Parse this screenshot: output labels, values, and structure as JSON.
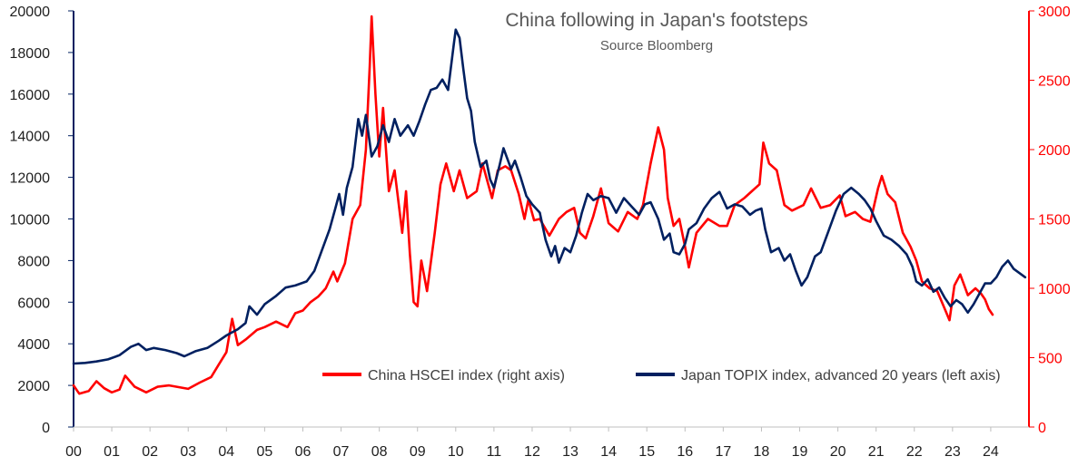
{
  "chart_data": {
    "type": "line",
    "title": "China following in Japan's footsteps",
    "subtitle": "Source Bloomberg",
    "x_axis": {
      "labels": [
        "00",
        "01",
        "02",
        "03",
        "04",
        "05",
        "06",
        "07",
        "08",
        "09",
        "10",
        "11",
        "12",
        "13",
        "14",
        "15",
        "16",
        "17",
        "18",
        "19",
        "20",
        "21",
        "22",
        "23",
        "24"
      ],
      "range": [
        2000,
        2025
      ]
    },
    "y_left": {
      "range": [
        0,
        20000
      ],
      "ticks": [
        0,
        2000,
        4000,
        6000,
        8000,
        10000,
        12000,
        14000,
        16000,
        18000,
        20000
      ],
      "tick_labels": [
        "0",
        "2000",
        "4000",
        "6000",
        "8000",
        "10000",
        "12000",
        "14000",
        "16000",
        "18000",
        "20000"
      ]
    },
    "y_right": {
      "range": [
        0,
        3000
      ],
      "ticks": [
        0,
        500,
        1000,
        1500,
        2000,
        2500,
        3000
      ],
      "tick_labels": [
        "0",
        "500",
        "1000",
        "1500",
        "2000",
        "2500",
        "3000"
      ]
    },
    "legend_position": "bottom-right",
    "series": [
      {
        "name": "China HSCEI index (right axis)",
        "axis": "right",
        "color": "#ff0000",
        "points": [
          [
            2000.0,
            300
          ],
          [
            2000.15,
            240
          ],
          [
            2000.4,
            260
          ],
          [
            2000.6,
            330
          ],
          [
            2000.8,
            280
          ],
          [
            2001.0,
            250
          ],
          [
            2001.2,
            270
          ],
          [
            2001.35,
            370
          ],
          [
            2001.6,
            290
          ],
          [
            2001.9,
            250
          ],
          [
            2002.2,
            290
          ],
          [
            2002.5,
            300
          ],
          [
            2002.8,
            285
          ],
          [
            2003.0,
            275
          ],
          [
            2003.3,
            320
          ],
          [
            2003.6,
            360
          ],
          [
            2003.8,
            450
          ],
          [
            2004.0,
            540
          ],
          [
            2004.15,
            780
          ],
          [
            2004.3,
            590
          ],
          [
            2004.5,
            630
          ],
          [
            2004.8,
            700
          ],
          [
            2005.0,
            720
          ],
          [
            2005.3,
            760
          ],
          [
            2005.6,
            720
          ],
          [
            2005.8,
            820
          ],
          [
            2006.0,
            840
          ],
          [
            2006.2,
            900
          ],
          [
            2006.4,
            940
          ],
          [
            2006.6,
            1000
          ],
          [
            2006.8,
            1120
          ],
          [
            2006.9,
            1050
          ],
          [
            2007.1,
            1180
          ],
          [
            2007.3,
            1500
          ],
          [
            2007.5,
            1600
          ],
          [
            2007.65,
            2000
          ],
          [
            2007.75,
            2600
          ],
          [
            2007.8,
            2960
          ],
          [
            2007.9,
            2400
          ],
          [
            2008.0,
            1950
          ],
          [
            2008.1,
            2300
          ],
          [
            2008.25,
            1700
          ],
          [
            2008.4,
            1850
          ],
          [
            2008.6,
            1400
          ],
          [
            2008.7,
            1700
          ],
          [
            2008.8,
            1250
          ],
          [
            2008.9,
            900
          ],
          [
            2009.0,
            870
          ],
          [
            2009.1,
            1200
          ],
          [
            2009.25,
            980
          ],
          [
            2009.45,
            1400
          ],
          [
            2009.6,
            1750
          ],
          [
            2009.75,
            1900
          ],
          [
            2009.95,
            1700
          ],
          [
            2010.1,
            1850
          ],
          [
            2010.3,
            1650
          ],
          [
            2010.55,
            1700
          ],
          [
            2010.7,
            1900
          ],
          [
            2010.8,
            1800
          ],
          [
            2010.95,
            1650
          ],
          [
            2011.1,
            1850
          ],
          [
            2011.3,
            1880
          ],
          [
            2011.45,
            1850
          ],
          [
            2011.65,
            1680
          ],
          [
            2011.8,
            1500
          ],
          [
            2011.9,
            1640
          ],
          [
            2012.05,
            1490
          ],
          [
            2012.2,
            1500
          ],
          [
            2012.45,
            1380
          ],
          [
            2012.7,
            1500
          ],
          [
            2012.9,
            1550
          ],
          [
            2013.1,
            1580
          ],
          [
            2013.25,
            1400
          ],
          [
            2013.4,
            1360
          ],
          [
            2013.6,
            1520
          ],
          [
            2013.8,
            1720
          ],
          [
            2014.0,
            1470
          ],
          [
            2014.25,
            1410
          ],
          [
            2014.5,
            1550
          ],
          [
            2014.75,
            1500
          ],
          [
            2014.9,
            1600
          ],
          [
            2015.1,
            1900
          ],
          [
            2015.3,
            2160
          ],
          [
            2015.45,
            2000
          ],
          [
            2015.55,
            1650
          ],
          [
            2015.7,
            1450
          ],
          [
            2015.85,
            1500
          ],
          [
            2016.0,
            1300
          ],
          [
            2016.1,
            1150
          ],
          [
            2016.3,
            1400
          ],
          [
            2016.6,
            1500
          ],
          [
            2016.9,
            1450
          ],
          [
            2017.1,
            1450
          ],
          [
            2017.3,
            1600
          ],
          [
            2017.55,
            1650
          ],
          [
            2017.75,
            1700
          ],
          [
            2017.95,
            1750
          ],
          [
            2018.05,
            2050
          ],
          [
            2018.2,
            1900
          ],
          [
            2018.4,
            1850
          ],
          [
            2018.6,
            1600
          ],
          [
            2018.8,
            1560
          ],
          [
            2019.1,
            1600
          ],
          [
            2019.3,
            1720
          ],
          [
            2019.55,
            1580
          ],
          [
            2019.8,
            1600
          ],
          [
            2020.05,
            1670
          ],
          [
            2020.2,
            1520
          ],
          [
            2020.45,
            1550
          ],
          [
            2020.65,
            1500
          ],
          [
            2020.85,
            1480
          ],
          [
            2021.05,
            1720
          ],
          [
            2021.15,
            1810
          ],
          [
            2021.3,
            1680
          ],
          [
            2021.5,
            1620
          ],
          [
            2021.7,
            1400
          ],
          [
            2021.9,
            1300
          ],
          [
            2022.05,
            1200
          ],
          [
            2022.2,
            1050
          ],
          [
            2022.4,
            1000
          ],
          [
            2022.6,
            980
          ],
          [
            2022.8,
            850
          ],
          [
            2022.92,
            770
          ],
          [
            2023.05,
            1020
          ],
          [
            2023.2,
            1100
          ],
          [
            2023.4,
            950
          ],
          [
            2023.6,
            1000
          ],
          [
            2023.75,
            960
          ],
          [
            2023.85,
            920
          ],
          [
            2023.95,
            850
          ],
          [
            2024.05,
            810
          ]
        ]
      },
      {
        "name": "Japan TOPIX index, advanced 20 years (left axis)",
        "axis": "left",
        "color": "#002060",
        "points": [
          [
            2000.0,
            3050
          ],
          [
            2000.3,
            3080
          ],
          [
            2000.6,
            3150
          ],
          [
            2000.9,
            3250
          ],
          [
            2001.2,
            3450
          ],
          [
            2001.5,
            3850
          ],
          [
            2001.7,
            4000
          ],
          [
            2001.9,
            3700
          ],
          [
            2002.1,
            3800
          ],
          [
            2002.4,
            3700
          ],
          [
            2002.7,
            3550
          ],
          [
            2002.9,
            3400
          ],
          [
            2003.2,
            3650
          ],
          [
            2003.5,
            3800
          ],
          [
            2003.8,
            4150
          ],
          [
            2004.0,
            4400
          ],
          [
            2004.3,
            4700
          ],
          [
            2004.5,
            5000
          ],
          [
            2004.6,
            5800
          ],
          [
            2004.8,
            5400
          ],
          [
            2005.0,
            5900
          ],
          [
            2005.3,
            6300
          ],
          [
            2005.55,
            6700
          ],
          [
            2005.8,
            6800
          ],
          [
            2006.1,
            7000
          ],
          [
            2006.3,
            7500
          ],
          [
            2006.5,
            8500
          ],
          [
            2006.7,
            9500
          ],
          [
            2006.85,
            10500
          ],
          [
            2006.95,
            11200
          ],
          [
            2007.05,
            10200
          ],
          [
            2007.15,
            11500
          ],
          [
            2007.3,
            12500
          ],
          [
            2007.45,
            14800
          ],
          [
            2007.55,
            14000
          ],
          [
            2007.65,
            15000
          ],
          [
            2007.8,
            13000
          ],
          [
            2007.95,
            13500
          ],
          [
            2008.1,
            14500
          ],
          [
            2008.25,
            13700
          ],
          [
            2008.4,
            14800
          ],
          [
            2008.55,
            14000
          ],
          [
            2008.75,
            14500
          ],
          [
            2008.9,
            14000
          ],
          [
            2009.05,
            14700
          ],
          [
            2009.2,
            15500
          ],
          [
            2009.35,
            16200
          ],
          [
            2009.5,
            16300
          ],
          [
            2009.65,
            16700
          ],
          [
            2009.8,
            16200
          ],
          [
            2009.95,
            18400
          ],
          [
            2010.0,
            19100
          ],
          [
            2010.1,
            18700
          ],
          [
            2010.2,
            17200
          ],
          [
            2010.3,
            15800
          ],
          [
            2010.4,
            15200
          ],
          [
            2010.5,
            13700
          ],
          [
            2010.65,
            12500
          ],
          [
            2010.8,
            12800
          ],
          [
            2010.9,
            11900
          ],
          [
            2011.0,
            11500
          ],
          [
            2011.15,
            12600
          ],
          [
            2011.25,
            13400
          ],
          [
            2011.45,
            12400
          ],
          [
            2011.55,
            12800
          ],
          [
            2011.7,
            12000
          ],
          [
            2011.85,
            11100
          ],
          [
            2012.0,
            10700
          ],
          [
            2012.2,
            10300
          ],
          [
            2012.35,
            9000
          ],
          [
            2012.5,
            8200
          ],
          [
            2012.6,
            8700
          ],
          [
            2012.7,
            7900
          ],
          [
            2012.85,
            8600
          ],
          [
            2013.0,
            8400
          ],
          [
            2013.15,
            9200
          ],
          [
            2013.3,
            10300
          ],
          [
            2013.45,
            11200
          ],
          [
            2013.6,
            10900
          ],
          [
            2013.8,
            11100
          ],
          [
            2014.0,
            11000
          ],
          [
            2014.2,
            10300
          ],
          [
            2014.4,
            11000
          ],
          [
            2014.6,
            10600
          ],
          [
            2014.8,
            10200
          ],
          [
            2014.95,
            10700
          ],
          [
            2015.1,
            10800
          ],
          [
            2015.3,
            10000
          ],
          [
            2015.45,
            9000
          ],
          [
            2015.6,
            9300
          ],
          [
            2015.7,
            8400
          ],
          [
            2015.85,
            8300
          ],
          [
            2016.0,
            8800
          ],
          [
            2016.1,
            9500
          ],
          [
            2016.3,
            9800
          ],
          [
            2016.5,
            10500
          ],
          [
            2016.7,
            11000
          ],
          [
            2016.9,
            11300
          ],
          [
            2017.1,
            10500
          ],
          [
            2017.3,
            10700
          ],
          [
            2017.5,
            10600
          ],
          [
            2017.7,
            10200
          ],
          [
            2017.85,
            10400
          ],
          [
            2018.0,
            10500
          ],
          [
            2018.1,
            9500
          ],
          [
            2018.25,
            8400
          ],
          [
            2018.45,
            8600
          ],
          [
            2018.6,
            8000
          ],
          [
            2018.75,
            8300
          ],
          [
            2018.9,
            7500
          ],
          [
            2019.05,
            6800
          ],
          [
            2019.2,
            7200
          ],
          [
            2019.4,
            8200
          ],
          [
            2019.55,
            8400
          ],
          [
            2019.75,
            9400
          ],
          [
            2019.95,
            10400
          ],
          [
            2020.15,
            11200
          ],
          [
            2020.35,
            11500
          ],
          [
            2020.55,
            11200
          ],
          [
            2020.7,
            10900
          ],
          [
            2020.85,
            10500
          ],
          [
            2021.0,
            9900
          ],
          [
            2021.2,
            9200
          ],
          [
            2021.4,
            9000
          ],
          [
            2021.6,
            8700
          ],
          [
            2021.8,
            8300
          ],
          [
            2021.95,
            7700
          ],
          [
            2022.05,
            7000
          ],
          [
            2022.2,
            6800
          ],
          [
            2022.35,
            7100
          ],
          [
            2022.5,
            6500
          ],
          [
            2022.65,
            6700
          ],
          [
            2022.8,
            6200
          ],
          [
            2022.95,
            5800
          ],
          [
            2023.1,
            6100
          ],
          [
            2023.25,
            5900
          ],
          [
            2023.4,
            5500
          ],
          [
            2023.55,
            5900
          ],
          [
            2023.7,
            6400
          ],
          [
            2023.85,
            6900
          ],
          [
            2024.0,
            6900
          ],
          [
            2024.15,
            7200
          ],
          [
            2024.3,
            7700
          ],
          [
            2024.45,
            8000
          ],
          [
            2024.6,
            7600
          ],
          [
            2024.75,
            7400
          ],
          [
            2024.9,
            7200
          ]
        ]
      }
    ]
  }
}
